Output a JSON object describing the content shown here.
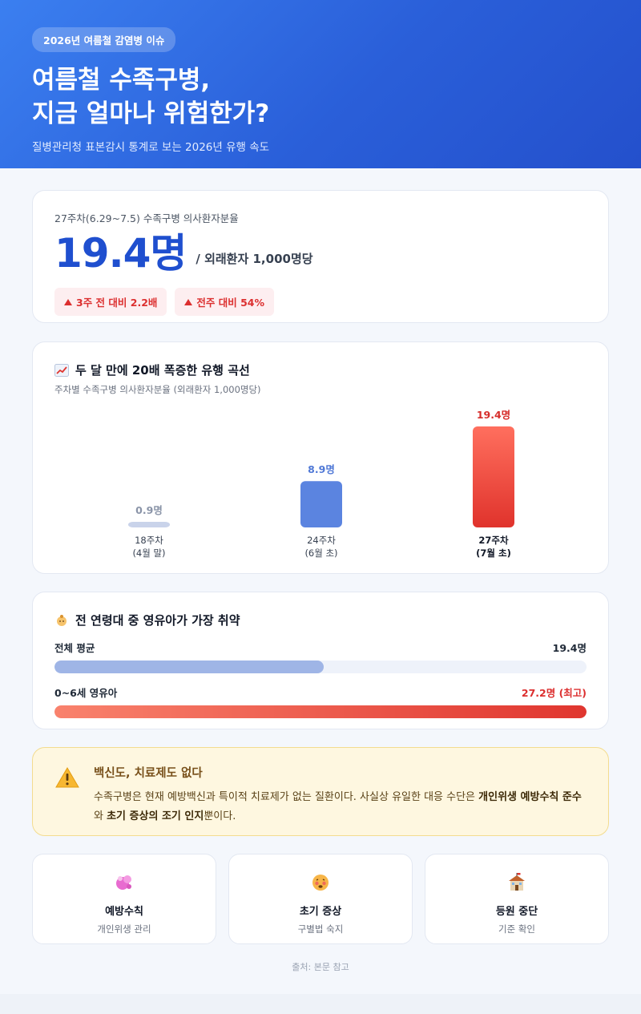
{
  "header": {
    "badge": "2026년 여름철 감염병 이슈",
    "title_line1": "여름철 수족구병,",
    "title_line2": "지금 얼마나 위험한가?",
    "subtitle": "질병관리청 표본감시 통계로 보는 2026년 유행 속도"
  },
  "headline": {
    "label": "27주차(6.29~7.5) 수족구병 의사환자분율",
    "value": "19.4명",
    "unit": "/ 외래환자 1,000명당",
    "chips": [
      "3주 전 대비 2.2배",
      "전주 대비 54%"
    ]
  },
  "trend": {
    "title": "두 달 만에 20배 폭증한 유행 곡선",
    "icon": "chart-increasing-icon",
    "subtitle": "주차별 수족구병 의사환자분율 (외래환자 1,000명당)"
  },
  "chart_data": {
    "type": "bar",
    "categories": [
      [
        "18주차",
        "(4월 말)"
      ],
      [
        "24주차",
        "(6월 초)"
      ],
      [
        "27주차",
        "(7월 초)"
      ]
    ],
    "values": [
      0.9,
      8.9,
      19.4
    ],
    "value_labels": [
      "0.9명",
      "8.9명",
      "19.4명"
    ],
    "colors": [
      "#c9d3ea",
      "#5b84e0",
      "#e63a30"
    ],
    "title": "두 달 만에 20배 폭증한 유행 곡선",
    "ylim": [
      0,
      19.4
    ]
  },
  "age": {
    "title": "전 연령대 중 영유아가 가장 취약",
    "icon": "baby-icon",
    "rows": [
      {
        "label": "전체 평균",
        "value_text": "19.4명",
        "value": 19.4
      },
      {
        "label": "0~6세 영유아",
        "value_text": "27.2명 (최고)",
        "value": 27.2
      }
    ],
    "max": 27.2
  },
  "warning": {
    "title": "백신도, 치료제도 없다",
    "body_1": "수족구병은 현재 예방백신과 특이적 치료제가 없는 질환이다. 사실상 유일한 대응 수단은 ",
    "body_bold_1": "개인위생 예방수칙 준수",
    "body_2": "와 ",
    "body_bold_2": "초기 증상의 조기 인지",
    "body_3": "뿐이다."
  },
  "tiles": [
    {
      "icon": "soap-icon",
      "title": "예방수칙",
      "sub": "개인위생 관리"
    },
    {
      "icon": "sick-face-icon",
      "title": "초기 증상",
      "sub": "구별법 숙지"
    },
    {
      "icon": "school-icon",
      "title": "등원 중단",
      "sub": "기준 확인"
    }
  ],
  "source": "출처: 본문 참고"
}
